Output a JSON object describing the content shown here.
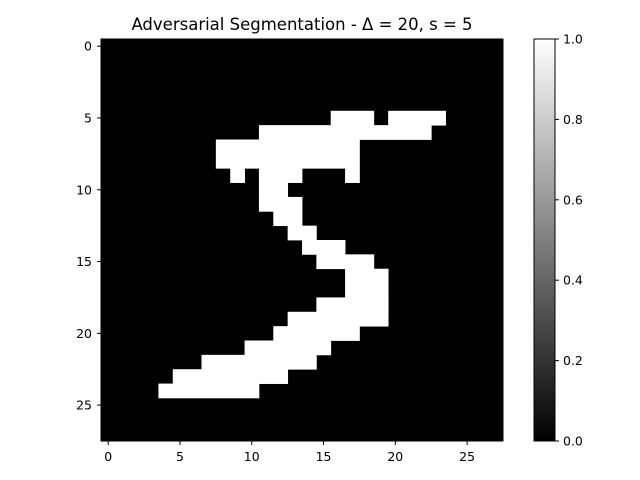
{
  "chart_data": {
    "type": "heatmap",
    "title": "Adversarial Segmentation - Δ = 20, s = 5",
    "colormap": "gray",
    "grid_size": [
      28,
      28
    ],
    "xlim": [
      -0.5,
      27.5
    ],
    "ylim": [
      27.5,
      -0.5
    ],
    "x_ticks": [
      0,
      5,
      10,
      15,
      20,
      25
    ],
    "y_ticks": [
      0,
      5,
      10,
      15,
      20,
      25
    ],
    "x_tick_labels": [
      "0",
      "5",
      "10",
      "15",
      "20",
      "25"
    ],
    "y_tick_labels": [
      "0",
      "5",
      "10",
      "15",
      "20",
      "25"
    ],
    "colorbar": {
      "range": [
        0.0,
        1.0
      ],
      "ticks": [
        0.0,
        0.2,
        0.4,
        0.6,
        0.8,
        1.0
      ],
      "tick_labels": [
        "0.0",
        "0.2",
        "0.4",
        "0.6",
        "0.8",
        "1.0"
      ]
    },
    "value_colors": {
      "0": "#000000",
      "1": "#ffffff"
    },
    "grid": false,
    "white_pixel_runs": [
      {
        "row": 5,
        "runs": [
          [
            16,
            18
          ],
          [
            20,
            23
          ]
        ]
      },
      {
        "row": 6,
        "runs": [
          [
            11,
            22
          ]
        ]
      },
      {
        "row": 7,
        "runs": [
          [
            8,
            17
          ]
        ]
      },
      {
        "row": 8,
        "runs": [
          [
            8,
            17
          ]
        ]
      },
      {
        "row": 9,
        "runs": [
          [
            9,
            9
          ],
          [
            11,
            13
          ],
          [
            17,
            17
          ]
        ]
      },
      {
        "row": 10,
        "runs": [
          [
            11,
            12
          ]
        ]
      },
      {
        "row": 11,
        "runs": [
          [
            11,
            13
          ]
        ]
      },
      {
        "row": 12,
        "runs": [
          [
            12,
            13
          ]
        ]
      },
      {
        "row": 13,
        "runs": [
          [
            13,
            14
          ]
        ]
      },
      {
        "row": 14,
        "runs": [
          [
            14,
            16
          ]
        ]
      },
      {
        "row": 15,
        "runs": [
          [
            15,
            18
          ]
        ]
      },
      {
        "row": 16,
        "runs": [
          [
            17,
            19
          ]
        ]
      },
      {
        "row": 17,
        "runs": [
          [
            17,
            19
          ]
        ]
      },
      {
        "row": 18,
        "runs": [
          [
            15,
            19
          ]
        ]
      },
      {
        "row": 19,
        "runs": [
          [
            13,
            19
          ]
        ]
      },
      {
        "row": 20,
        "runs": [
          [
            12,
            17
          ]
        ]
      },
      {
        "row": 21,
        "runs": [
          [
            10,
            15
          ]
        ]
      },
      {
        "row": 22,
        "runs": [
          [
            7,
            14
          ]
        ]
      },
      {
        "row": 23,
        "runs": [
          [
            5,
            12
          ]
        ]
      },
      {
        "row": 24,
        "runs": [
          [
            4,
            10
          ]
        ]
      }
    ]
  }
}
